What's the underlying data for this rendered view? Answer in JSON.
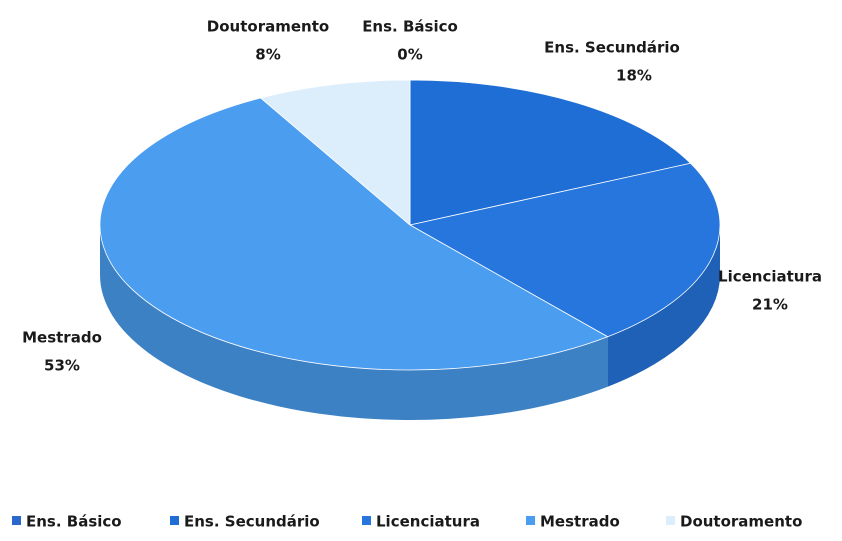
{
  "chart_data": {
    "type": "pie3d",
    "categories": [
      "Ens. Básico",
      "Ens. Secundário",
      "Licenciatura",
      "Mestrado",
      "Doutoramento"
    ],
    "values": [
      0,
      18,
      21,
      53,
      8
    ],
    "value_labels": [
      "0%",
      "18%",
      "21%",
      "53%",
      "8%"
    ],
    "colors": [
      "#2a68cc",
      "#1f6ed6",
      "#2676de",
      "#4b9df0",
      "#dcedfc"
    ],
    "legend": "bottom"
  }
}
